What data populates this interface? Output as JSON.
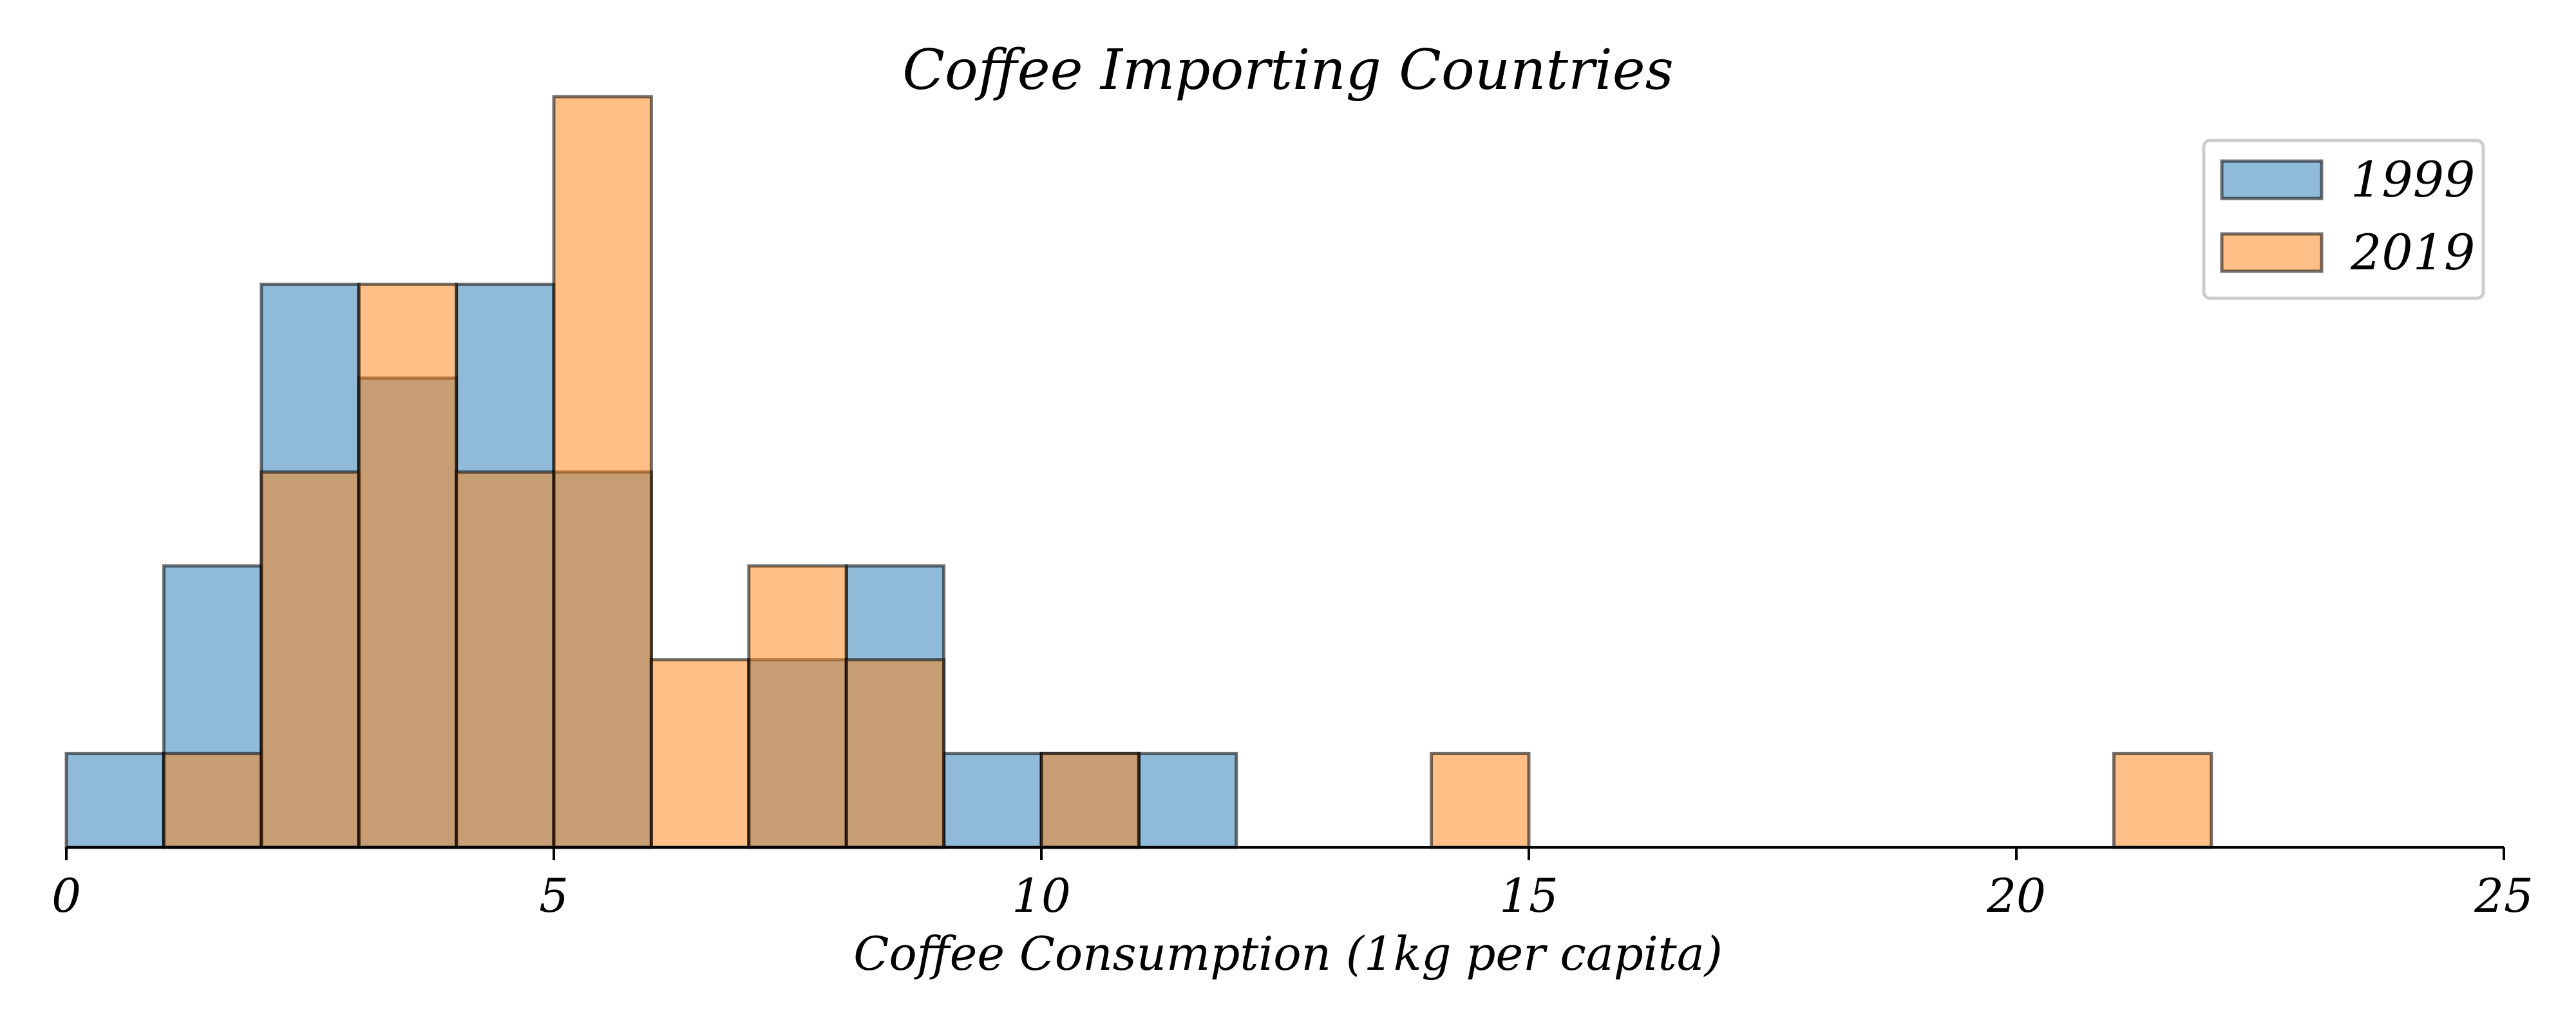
{
  "chart_data": {
    "type": "bar",
    "subtype": "overlapping-histogram",
    "title": "Coffee Importing Countries",
    "xlabel": "Coffee Consumption (1kg per capita)",
    "ylabel": "",
    "xlim": [
      0,
      25
    ],
    "ylim": [
      0,
      8
    ],
    "xticks": [
      0,
      5,
      10,
      15,
      20,
      25
    ],
    "xtick_labels": [
      "0",
      "5",
      "10",
      "15",
      "20",
      "25"
    ],
    "y_axis_visible": false,
    "grid": false,
    "legend_position": "top-right",
    "bin_width": 1,
    "bin_edges": [
      0,
      1,
      2,
      3,
      4,
      5,
      6,
      7,
      8,
      9,
      10,
      11,
      12,
      13,
      14,
      15,
      16,
      17,
      18,
      19,
      20,
      21,
      22,
      23,
      24
    ],
    "series": [
      {
        "name": "1999",
        "color": "#1f77b4",
        "counts": [
          1,
          3,
          6,
          5,
          6,
          4,
          0,
          2,
          3,
          1,
          1,
          1,
          0,
          0,
          0,
          0,
          0,
          0,
          0,
          0,
          0,
          0,
          0,
          0
        ]
      },
      {
        "name": "2019",
        "color": "#ff7f0e",
        "counts": [
          0,
          1,
          4,
          6,
          4,
          8,
          2,
          3,
          2,
          0,
          1,
          0,
          0,
          0,
          1,
          0,
          0,
          0,
          0,
          0,
          0,
          1,
          0,
          0
        ]
      }
    ]
  }
}
